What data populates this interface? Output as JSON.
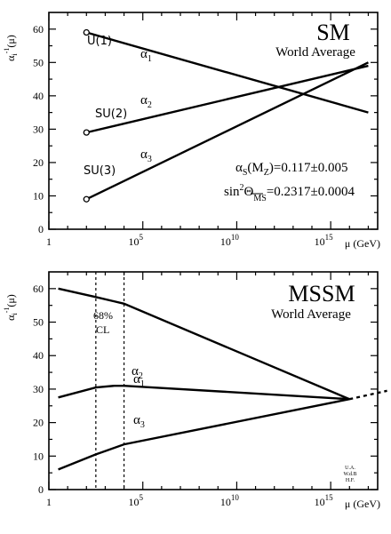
{
  "chart_data": [
    {
      "type": "line",
      "title": "SM",
      "subtitle": "World Average",
      "ylabel": "α_i^{-1}(μ)",
      "xlabel": "μ (GeV)",
      "xscale": "log10",
      "xlim": [
        0,
        17.5
      ],
      "ylim": [
        0,
        65
      ],
      "yticks": [
        "0",
        "10",
        "20",
        "30",
        "40",
        "50",
        "60"
      ],
      "xticks": [
        "1",
        "10^5",
        "10^10",
        "10^15"
      ],
      "series": [
        {
          "name": "α1",
          "label": "U(1)",
          "x": [
            2,
            17
          ],
          "y": [
            59,
            35
          ]
        },
        {
          "name": "α2",
          "label": "SU(2)",
          "x": [
            2,
            17
          ],
          "y": [
            29,
            49
          ]
        },
        {
          "name": "α3",
          "label": "SU(3)",
          "x": [
            2,
            17
          ],
          "y": [
            9,
            50
          ]
        }
      ],
      "markers": [
        {
          "x": 2,
          "y": 59
        },
        {
          "x": 2,
          "y": 29
        },
        {
          "x": 2,
          "y": 9
        }
      ],
      "annotations": {
        "alpha_s": "α_S(M_Z)=0.117±0.005",
        "sin2": "sin²Θ_MS=0.2317±0.0004"
      },
      "labels": {
        "u1": "U(1)",
        "su2": "SU(2)",
        "su3": "SU(3)",
        "a1": "α1",
        "a2": "α2",
        "a3": "α3"
      }
    },
    {
      "type": "line",
      "title": "MSSM",
      "subtitle": "World Average",
      "ylabel": "α_i^{-1}(μ)",
      "xlabel": "μ (GeV)",
      "xscale": "log10",
      "xlim": [
        0,
        17.5
      ],
      "ylim": [
        0,
        65
      ],
      "yticks": [
        "0",
        "10",
        "20",
        "30",
        "40",
        "50",
        "60"
      ],
      "xticks": [
        "1",
        "10^5",
        "10^10",
        "10^15"
      ],
      "series": [
        {
          "name": "α1",
          "x": [
            0.5,
            2.5,
            4.0,
            16.0
          ],
          "y": [
            60,
            57.5,
            55.5,
            27
          ]
        },
        {
          "name": "α2",
          "x": [
            0.5,
            2.5,
            3.5,
            4.0,
            16.0
          ],
          "y": [
            27.5,
            30.5,
            31,
            31,
            27
          ]
        },
        {
          "name": "α3",
          "x": [
            0.5,
            2.5,
            4.0,
            16.0
          ],
          "y": [
            6,
            10.5,
            13.5,
            27
          ]
        }
      ],
      "extrapolation": {
        "x": [
          16.0,
          18.0
        ],
        "y": [
          27,
          29.5
        ]
      },
      "cl_band": {
        "x": [
          2.5,
          4.0
        ],
        "label": "68% CL"
      },
      "labels": {
        "cl_top": "68%",
        "cl_bottom": "CL",
        "a1": "α1",
        "a2": "α2",
        "a3": "α3"
      },
      "stamp": [
        "U.A.",
        "W.d.B",
        "H.F."
      ]
    }
  ]
}
